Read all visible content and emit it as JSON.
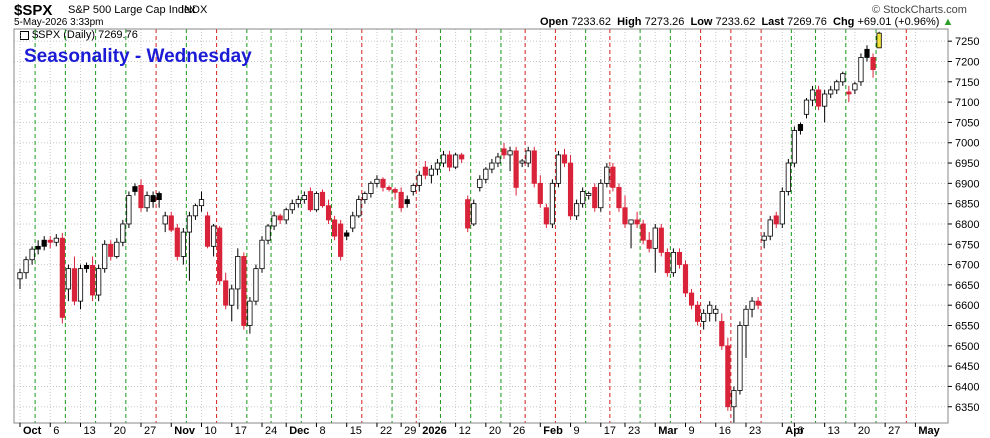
{
  "header": {
    "symbol": "$SPX",
    "description": "S&P 500 Large Cap Index",
    "exchange": "INDX",
    "datetime": "5-May-2026 3:33pm",
    "watermark": "© StockCharts.com",
    "open_label": "Open",
    "open": "7233.62",
    "high_label": "High",
    "high": "7273.26",
    "low_label": "Low",
    "low": "7233.62",
    "last_label": "Last",
    "last": "7269.76",
    "chg_label": "Chg",
    "chg": "+69.01 (+0.96%)"
  },
  "legend": {
    "text": "$SPX (Daily) 7269.76"
  },
  "overlay_title": "Seasonality - Wednesday",
  "colors": {
    "up": "#ffffff",
    "down": "#d9233a",
    "black_candle": "#000000",
    "last_bar": "#f2e33c",
    "green_line": "#1a9a1a",
    "red_line": "#d62020",
    "grid": "#c8c8c8",
    "title": "#1b1bd6",
    "up_arrow": "#2aa02a"
  },
  "chart_data": {
    "type": "candlestick",
    "title": "Seasonality - Wednesday",
    "y_ticks": [
      6350,
      6400,
      6450,
      6500,
      6550,
      6600,
      6650,
      6700,
      6750,
      6800,
      6850,
      6900,
      6950,
      7000,
      7050,
      7100,
      7150,
      7200,
      7250
    ],
    "ylim": [
      6310,
      7280
    ],
    "x_ticks": [
      {
        "label": "Oct",
        "bold": true,
        "i": 0
      },
      {
        "label": "6",
        "i": 5
      },
      {
        "label": "13",
        "i": 10
      },
      {
        "label": "20",
        "i": 15
      },
      {
        "label": "27",
        "i": 20
      },
      {
        "label": "Nov",
        "bold": true,
        "i": 25
      },
      {
        "label": "10",
        "i": 30
      },
      {
        "label": "17",
        "i": 35
      },
      {
        "label": "24",
        "i": 40
      },
      {
        "label": "Dec",
        "bold": true,
        "i": 44
      },
      {
        "label": "8",
        "i": 49
      },
      {
        "label": "15",
        "i": 54
      },
      {
        "label": "22",
        "i": 59
      },
      {
        "label": "29",
        "i": 63
      },
      {
        "label": "2026",
        "bold": true,
        "i": 66
      },
      {
        "label": "12",
        "i": 72
      },
      {
        "label": "20",
        "i": 77
      },
      {
        "label": "26",
        "i": 81
      },
      {
        "label": "Feb",
        "bold": true,
        "i": 86
      },
      {
        "label": "9",
        "i": 91
      },
      {
        "label": "17",
        "i": 96
      },
      {
        "label": "23",
        "i": 100
      },
      {
        "label": "Mar",
        "bold": true,
        "i": 105
      },
      {
        "label": "9",
        "i": 110
      },
      {
        "label": "16",
        "i": 115
      },
      {
        "label": "23",
        "i": 120
      },
      {
        "label": "Apr",
        "bold": true,
        "i": 126
      },
      {
        "label": "6",
        "i": 128
      },
      {
        "label": "13",
        "i": 133
      },
      {
        "label": "20",
        "i": 138
      },
      {
        "label": "27",
        "i": 143
      },
      {
        "label": "May",
        "bold": true,
        "i": 148
      }
    ],
    "seasonal_lines": [
      {
        "i": 2,
        "c": "g"
      },
      {
        "i": 7,
        "c": "g"
      },
      {
        "i": 12,
        "c": "g"
      },
      {
        "i": 17,
        "c": "g"
      },
      {
        "i": 22,
        "c": "r"
      },
      {
        "i": 27,
        "c": "g"
      },
      {
        "i": 32,
        "c": "r"
      },
      {
        "i": 37,
        "c": "g"
      },
      {
        "i": 41,
        "c": "g"
      },
      {
        "i": 46,
        "c": "g"
      },
      {
        "i": 51,
        "c": "g"
      },
      {
        "i": 56,
        "c": "r"
      },
      {
        "i": 61,
        "c": "g"
      },
      {
        "i": 65,
        "c": "r"
      },
      {
        "i": 69,
        "c": "g"
      },
      {
        "i": 74,
        "c": "g"
      },
      {
        "i": 79,
        "c": "g"
      },
      {
        "i": 83,
        "c": "r"
      },
      {
        "i": 88,
        "c": "r"
      },
      {
        "i": 93,
        "c": "g"
      },
      {
        "i": 97,
        "c": "r"
      },
      {
        "i": 102,
        "c": "g"
      },
      {
        "i": 107,
        "c": "g"
      },
      {
        "i": 112,
        "c": "r"
      },
      {
        "i": 117,
        "c": "r"
      },
      {
        "i": 122,
        "c": "r"
      },
      {
        "i": 127,
        "c": "g"
      },
      {
        "i": 131,
        "c": "g"
      },
      {
        "i": 136,
        "c": "g"
      },
      {
        "i": 141,
        "c": "g"
      },
      {
        "i": 146,
        "c": "r"
      }
    ],
    "candles": [
      {
        "o": 6665,
        "h": 6690,
        "l": 6640,
        "c": 6680
      },
      {
        "o": 6680,
        "h": 6720,
        "l": 6665,
        "c": 6712
      },
      {
        "o": 6712,
        "h": 6745,
        "l": 6700,
        "c": 6738
      },
      {
        "o": 6738,
        "h": 6760,
        "l": 6725,
        "c": 6745,
        "b": 1
      },
      {
        "o": 6745,
        "h": 6770,
        "l": 6735,
        "c": 6760,
        "b": 1
      },
      {
        "o": 6760,
        "h": 6770,
        "l": 6740,
        "c": 6755
      },
      {
        "o": 6755,
        "h": 6775,
        "l": 6745,
        "c": 6765
      },
      {
        "o": 6765,
        "h": 6778,
        "l": 6555,
        "c": 6570
      },
      {
        "o": 6640,
        "h": 6700,
        "l": 6610,
        "c": 6690
      },
      {
        "o": 6690,
        "h": 6720,
        "l": 6600,
        "c": 6610
      },
      {
        "o": 6610,
        "h": 6700,
        "l": 6590,
        "c": 6690
      },
      {
        "o": 6690,
        "h": 6705,
        "l": 6680,
        "c": 6698,
        "b": 1
      },
      {
        "o": 6698,
        "h": 6720,
        "l": 6610,
        "c": 6625
      },
      {
        "o": 6625,
        "h": 6700,
        "l": 6610,
        "c": 6690
      },
      {
        "o": 6690,
        "h": 6760,
        "l": 6680,
        "c": 6750
      },
      {
        "o": 6750,
        "h": 6760,
        "l": 6710,
        "c": 6720
      },
      {
        "o": 6720,
        "h": 6765,
        "l": 6715,
        "c": 6755
      },
      {
        "o": 6755,
        "h": 6810,
        "l": 6745,
        "c": 6800
      },
      {
        "o": 6800,
        "h": 6880,
        "l": 6790,
        "c": 6870
      },
      {
        "o": 6880,
        "h": 6900,
        "l": 6870,
        "c": 6892,
        "b": 1
      },
      {
        "o": 6895,
        "h": 6910,
        "l": 6830,
        "c": 6840
      },
      {
        "o": 6840,
        "h": 6880,
        "l": 6830,
        "c": 6870
      },
      {
        "o": 6870,
        "h": 6880,
        "l": 6840,
        "c": 6855,
        "b": 1
      },
      {
        "o": 6860,
        "h": 6880,
        "l": 6840,
        "c": 6875,
        "b": 1
      },
      {
        "o": 6800,
        "h": 6830,
        "l": 6780,
        "c": 6820
      },
      {
        "o": 6820,
        "h": 6830,
        "l": 6780,
        "c": 6785
      },
      {
        "o": 6790,
        "h": 6800,
        "l": 6710,
        "c": 6720
      },
      {
        "o": 6720,
        "h": 6790,
        "l": 6700,
        "c": 6780
      },
      {
        "o": 6780,
        "h": 6830,
        "l": 6660,
        "c": 6820
      },
      {
        "o": 6820,
        "h": 6850,
        "l": 6810,
        "c": 6845
      },
      {
        "o": 6845,
        "h": 6880,
        "l": 6830,
        "c": 6860
      },
      {
        "o": 6820,
        "h": 6830,
        "l": 6740,
        "c": 6745
      },
      {
        "o": 6745,
        "h": 6800,
        "l": 6720,
        "c": 6795
      },
      {
        "o": 6790,
        "h": 6795,
        "l": 6650,
        "c": 6660
      },
      {
        "o": 6660,
        "h": 6680,
        "l": 6590,
        "c": 6600
      },
      {
        "o": 6600,
        "h": 6650,
        "l": 6560,
        "c": 6640
      },
      {
        "o": 6640,
        "h": 6740,
        "l": 6590,
        "c": 6720
      },
      {
        "o": 6720,
        "h": 6730,
        "l": 6540,
        "c": 6550
      },
      {
        "o": 6550,
        "h": 6620,
        "l": 6530,
        "c": 6610
      },
      {
        "o": 6610,
        "h": 6700,
        "l": 6600,
        "c": 6690
      },
      {
        "o": 6690,
        "h": 6770,
        "l": 6680,
        "c": 6760
      },
      {
        "o": 6760,
        "h": 6800,
        "l": 6750,
        "c": 6795
      },
      {
        "o": 6795,
        "h": 6830,
        "l": 6785,
        "c": 6820
      },
      {
        "o": 6820,
        "h": 6825,
        "l": 6800,
        "c": 6810
      },
      {
        "o": 6810,
        "h": 6840,
        "l": 6800,
        "c": 6835
      },
      {
        "o": 6835,
        "h": 6860,
        "l": 6825,
        "c": 6850
      },
      {
        "o": 6850,
        "h": 6870,
        "l": 6840,
        "c": 6860
      },
      {
        "o": 6860,
        "h": 6880,
        "l": 6850,
        "c": 6870
      },
      {
        "o": 6880,
        "h": 6890,
        "l": 6830,
        "c": 6835
      },
      {
        "o": 6835,
        "h": 6880,
        "l": 6830,
        "c": 6875
      },
      {
        "o": 6878,
        "h": 6885,
        "l": 6840,
        "c": 6845
      },
      {
        "o": 6845,
        "h": 6860,
        "l": 6800,
        "c": 6810
      },
      {
        "o": 6810,
        "h": 6820,
        "l": 6760,
        "c": 6770
      },
      {
        "o": 6800,
        "h": 6810,
        "l": 6710,
        "c": 6720
      },
      {
        "o": 6770,
        "h": 6785,
        "l": 6760,
        "c": 6778,
        "b": 1
      },
      {
        "o": 6790,
        "h": 6830,
        "l": 6780,
        "c": 6820
      },
      {
        "o": 6820,
        "h": 6870,
        "l": 6815,
        "c": 6860
      },
      {
        "o": 6860,
        "h": 6880,
        "l": 6850,
        "c": 6875
      },
      {
        "o": 6875,
        "h": 6905,
        "l": 6865,
        "c": 6900
      },
      {
        "o": 6900,
        "h": 6920,
        "l": 6890,
        "c": 6910
      },
      {
        "o": 6910,
        "h": 6915,
        "l": 6880,
        "c": 6890
      },
      {
        "o": 6890,
        "h": 6895,
        "l": 6880,
        "c": 6885
      },
      {
        "o": 6885,
        "h": 6890,
        "l": 6860,
        "c": 6878
      },
      {
        "o": 6878,
        "h": 6890,
        "l": 6830,
        "c": 6840
      },
      {
        "o": 6860,
        "h": 6870,
        "l": 6840,
        "c": 6850,
        "b": 1
      },
      {
        "o": 6880,
        "h": 6900,
        "l": 6870,
        "c": 6895
      },
      {
        "o": 6895,
        "h": 6930,
        "l": 6880,
        "c": 6920
      },
      {
        "o": 6940,
        "h": 6955,
        "l": 6910,
        "c": 6920
      },
      {
        "o": 6920,
        "h": 6945,
        "l": 6900,
        "c": 6935
      },
      {
        "o": 6935,
        "h": 6960,
        "l": 6920,
        "c": 6950
      },
      {
        "o": 6950,
        "h": 6980,
        "l": 6940,
        "c": 6970
      },
      {
        "o": 6970,
        "h": 6980,
        "l": 6930,
        "c": 6940
      },
      {
        "o": 6940,
        "h": 6975,
        "l": 6935,
        "c": 6970
      },
      {
        "o": 6970,
        "h": 6975,
        "l": 6950,
        "c": 6960
      },
      {
        "o": 6860,
        "h": 6870,
        "l": 6780,
        "c": 6790
      },
      {
        "o": 6800,
        "h": 6860,
        "l": 6795,
        "c": 6850
      },
      {
        "o": 6890,
        "h": 6920,
        "l": 6880,
        "c": 6910
      },
      {
        "o": 6910,
        "h": 6940,
        "l": 6900,
        "c": 6935
      },
      {
        "o": 6935,
        "h": 6960,
        "l": 6925,
        "c": 6950
      },
      {
        "o": 6950,
        "h": 6975,
        "l": 6940,
        "c": 6965
      },
      {
        "o": 6985,
        "h": 7000,
        "l": 6960,
        "c": 6970
      },
      {
        "o": 6970,
        "h": 6990,
        "l": 6930,
        "c": 6980
      },
      {
        "o": 6980,
        "h": 6990,
        "l": 6870,
        "c": 6890
      },
      {
        "o": 6950,
        "h": 6960,
        "l": 6940,
        "c": 6955
      },
      {
        "o": 6950,
        "h": 6990,
        "l": 6940,
        "c": 6980
      },
      {
        "o": 6980,
        "h": 6990,
        "l": 6890,
        "c": 6900
      },
      {
        "o": 6900,
        "h": 6920,
        "l": 6840,
        "c": 6850
      },
      {
        "o": 6840,
        "h": 6850,
        "l": 6790,
        "c": 6800
      },
      {
        "o": 6800,
        "h": 6910,
        "l": 6790,
        "c": 6900
      },
      {
        "o": 6900,
        "h": 6980,
        "l": 6890,
        "c": 6970
      },
      {
        "o": 6970,
        "h": 6985,
        "l": 6940,
        "c": 6950
      },
      {
        "o": 6950,
        "h": 6970,
        "l": 6810,
        "c": 6820
      },
      {
        "o": 6820,
        "h": 6860,
        "l": 6810,
        "c": 6850
      },
      {
        "o": 6850,
        "h": 6890,
        "l": 6840,
        "c": 6880
      },
      {
        "o": 6870,
        "h": 6880,
        "l": 6860,
        "c": 6875
      },
      {
        "o": 6890,
        "h": 6900,
        "l": 6830,
        "c": 6840
      },
      {
        "o": 6840,
        "h": 6910,
        "l": 6830,
        "c": 6900
      },
      {
        "o": 6900,
        "h": 6950,
        "l": 6890,
        "c": 6940
      },
      {
        "o": 6940,
        "h": 6950,
        "l": 6880,
        "c": 6890
      },
      {
        "o": 6890,
        "h": 6900,
        "l": 6830,
        "c": 6840
      },
      {
        "o": 6840,
        "h": 6870,
        "l": 6790,
        "c": 6800
      },
      {
        "o": 6800,
        "h": 6810,
        "l": 6740,
        "c": 6810
      },
      {
        "o": 6810,
        "h": 6830,
        "l": 6790,
        "c": 6800
      },
      {
        "o": 6800,
        "h": 6810,
        "l": 6750,
        "c": 6760
      },
      {
        "o": 6760,
        "h": 6780,
        "l": 6730,
        "c": 6740
      },
      {
        "o": 6740,
        "h": 6800,
        "l": 6680,
        "c": 6790
      },
      {
        "o": 6790,
        "h": 6800,
        "l": 6720,
        "c": 6730
      },
      {
        "o": 6730,
        "h": 6740,
        "l": 6670,
        "c": 6680
      },
      {
        "o": 6680,
        "h": 6740,
        "l": 6670,
        "c": 6730
      },
      {
        "o": 6730,
        "h": 6740,
        "l": 6690,
        "c": 6700
      },
      {
        "o": 6700,
        "h": 6710,
        "l": 6620,
        "c": 6630
      },
      {
        "o": 6630,
        "h": 6640,
        "l": 6590,
        "c": 6600
      },
      {
        "o": 6600,
        "h": 6610,
        "l": 6550,
        "c": 6560
      },
      {
        "o": 6560,
        "h": 6590,
        "l": 6540,
        "c": 6580
      },
      {
        "o": 6580,
        "h": 6610,
        "l": 6560,
        "c": 6600
      },
      {
        "o": 6580,
        "h": 6600,
        "l": 6560,
        "c": 6590
      },
      {
        "o": 6560,
        "h": 6580,
        "l": 6490,
        "c": 6500
      },
      {
        "o": 6500,
        "h": 6520,
        "l": 6340,
        "c": 6350
      },
      {
        "o": 6350,
        "h": 6400,
        "l": 6310,
        "c": 6390
      },
      {
        "o": 6390,
        "h": 6560,
        "l": 6380,
        "c": 6550
      },
      {
        "o": 6550,
        "h": 6600,
        "l": 6470,
        "c": 6590
      },
      {
        "o": 6590,
        "h": 6620,
        "l": 6570,
        "c": 6610
      },
      {
        "o": 6610,
        "h": 6620,
        "l": 6590,
        "c": 6600
      },
      {
        "o": 6760,
        "h": 6780,
        "l": 6740,
        "c": 6770
      },
      {
        "o": 6770,
        "h": 6820,
        "l": 6760,
        "c": 6810
      },
      {
        "o": 6820,
        "h": 6830,
        "l": 6790,
        "c": 6800
      },
      {
        "o": 6800,
        "h": 6890,
        "l": 6790,
        "c": 6880
      },
      {
        "o": 6880,
        "h": 6960,
        "l": 6870,
        "c": 6950
      },
      {
        "o": 6950,
        "h": 7040,
        "l": 6940,
        "c": 7030
      },
      {
        "o": 7030,
        "h": 7050,
        "l": 7020,
        "c": 7045,
        "b": 1
      },
      {
        "o": 7070,
        "h": 7110,
        "l": 7060,
        "c": 7105
      },
      {
        "o": 7105,
        "h": 7140,
        "l": 7090,
        "c": 7130
      },
      {
        "o": 7130,
        "h": 7140,
        "l": 7080,
        "c": 7090
      },
      {
        "o": 7090,
        "h": 7130,
        "l": 7050,
        "c": 7120
      },
      {
        "o": 7120,
        "h": 7140,
        "l": 7110,
        "c": 7130
      },
      {
        "o": 7130,
        "h": 7155,
        "l": 7120,
        "c": 7150
      },
      {
        "o": 7150,
        "h": 7175,
        "l": 7140,
        "c": 7170
      },
      {
        "o": 7125,
        "h": 7140,
        "l": 7100,
        "c": 7120
      },
      {
        "o": 7130,
        "h": 7150,
        "l": 7120,
        "c": 7145
      },
      {
        "o": 7150,
        "h": 7220,
        "l": 7140,
        "c": 7210
      },
      {
        "o": 7210,
        "h": 7240,
        "l": 7200,
        "c": 7230,
        "b": 1
      },
      {
        "o": 7210,
        "h": 7220,
        "l": 7160,
        "c": 7180
      },
      {
        "o": 7233.62,
        "h": 7273.26,
        "l": 7233.62,
        "c": 7269.76,
        "y": 1
      }
    ]
  }
}
